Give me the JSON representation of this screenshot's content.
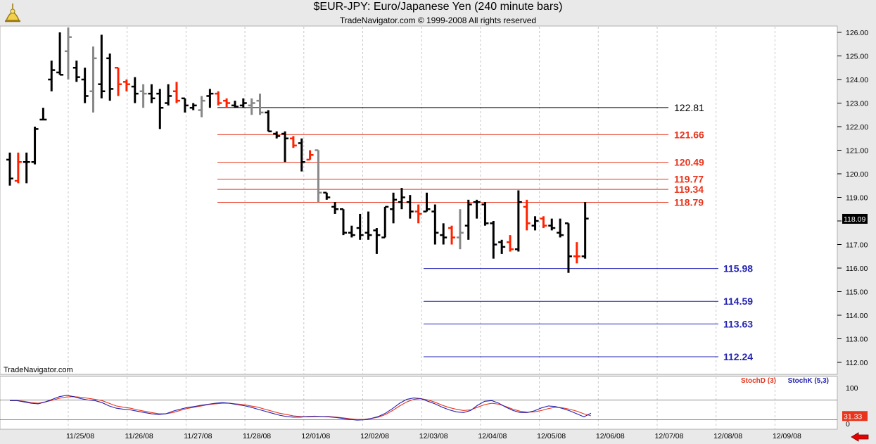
{
  "header": {
    "title": "$EUR-JPY:  Euro/Japanese Yen  (240 minute bars)",
    "subtitle": "TradeNavigator.com © 1999-2008 All rights reserved"
  },
  "watermark": "TradeNavigator.com",
  "colors": {
    "up_bar": "#000000",
    "down_bar": "#ff2200",
    "inside_bar": "#888888",
    "resistance": "#e8341c",
    "support": "#2323b4",
    "stoch_d": "#e8341c",
    "stoch_k": "#2323b4"
  },
  "chart_data": [
    {
      "type": "ohlc",
      "x_tick_labels": [
        "11/25/08",
        "11/26/08",
        "11/27/08",
        "11/28/08",
        "12/01/08",
        "12/02/08",
        "12/03/08",
        "12/04/08",
        "12/05/08",
        "12/06/08",
        "12/07/08",
        "12/08/08",
        "12/09/08"
      ],
      "ylim": [
        111.8,
        126.2
      ],
      "y_ticks": [
        112.0,
        113.0,
        114.0,
        115.0,
        116.0,
        117.0,
        118.0,
        119.0,
        120.0,
        121.0,
        122.0,
        123.0,
        124.0,
        125.0,
        126.0
      ],
      "last_price": "118.09",
      "bars": [
        {
          "o": 120.6,
          "h": 120.9,
          "l": 119.5,
          "c": 119.8,
          "k": "u"
        },
        {
          "o": 119.7,
          "h": 120.9,
          "l": 119.6,
          "c": 120.5,
          "k": "d"
        },
        {
          "o": 120.5,
          "h": 120.9,
          "l": 119.6,
          "c": 120.5,
          "k": "u"
        },
        {
          "o": 120.5,
          "h": 122.0,
          "l": 120.4,
          "c": 121.9,
          "k": "u"
        },
        {
          "o": 122.3,
          "h": 122.8,
          "l": 122.3,
          "c": 122.3,
          "k": "u"
        },
        {
          "o": 124.0,
          "h": 124.8,
          "l": 123.5,
          "c": 124.4,
          "k": "u"
        },
        {
          "o": 124.3,
          "h": 126.0,
          "l": 124.2,
          "c": 124.2,
          "k": "u"
        },
        {
          "o": 125.2,
          "h": 126.2,
          "l": 124.0,
          "c": 125.8,
          "k": "i"
        },
        {
          "o": 124.5,
          "h": 124.8,
          "l": 123.9,
          "c": 124.1,
          "k": "u"
        },
        {
          "o": 124.0,
          "h": 124.5,
          "l": 123.0,
          "c": 123.3,
          "k": "u"
        },
        {
          "o": 123.5,
          "h": 125.4,
          "l": 122.6,
          "c": 124.9,
          "k": "i"
        },
        {
          "o": 123.8,
          "h": 125.9,
          "l": 123.2,
          "c": 123.5,
          "k": "u"
        },
        {
          "o": 124.9,
          "h": 125.1,
          "l": 123.1,
          "c": 123.6,
          "k": "u"
        },
        {
          "o": 124.5,
          "h": 124.5,
          "l": 123.3,
          "c": 123.8,
          "k": "d"
        },
        {
          "o": 123.9,
          "h": 124.0,
          "l": 123.5,
          "c": 123.8,
          "k": "d"
        },
        {
          "o": 123.7,
          "h": 124.1,
          "l": 123.0,
          "c": 123.4,
          "k": "u"
        },
        {
          "o": 123.5,
          "h": 123.8,
          "l": 122.8,
          "c": 123.4,
          "k": "i"
        },
        {
          "o": 123.4,
          "h": 123.8,
          "l": 123.0,
          "c": 123.2,
          "k": "u"
        },
        {
          "o": 123.4,
          "h": 123.6,
          "l": 121.9,
          "c": 122.8,
          "k": "u"
        },
        {
          "o": 123.0,
          "h": 123.8,
          "l": 122.9,
          "c": 123.3,
          "k": "u"
        },
        {
          "o": 123.5,
          "h": 123.9,
          "l": 123.0,
          "c": 123.1,
          "k": "d"
        },
        {
          "o": 123.2,
          "h": 123.2,
          "l": 122.6,
          "c": 122.9,
          "k": "u"
        },
        {
          "o": 122.8,
          "h": 123.0,
          "l": 122.7,
          "c": 122.9,
          "k": "u"
        },
        {
          "o": 122.7,
          "h": 123.3,
          "l": 122.4,
          "c": 123.1,
          "k": "i"
        },
        {
          "o": 123.3,
          "h": 123.6,
          "l": 122.8,
          "c": 123.4,
          "k": "u"
        },
        {
          "o": 123.4,
          "h": 123.5,
          "l": 122.9,
          "c": 123.0,
          "k": "d"
        },
        {
          "o": 123.1,
          "h": 123.2,
          "l": 122.8,
          "c": 123.0,
          "k": "d"
        },
        {
          "o": 122.9,
          "h": 123.1,
          "l": 122.8,
          "c": 122.85,
          "k": "u"
        },
        {
          "o": 122.9,
          "h": 123.2,
          "l": 122.8,
          "c": 123.0,
          "k": "u"
        },
        {
          "o": 122.9,
          "h": 123.2,
          "l": 122.5,
          "c": 123.0,
          "k": "i"
        },
        {
          "o": 123.1,
          "h": 123.4,
          "l": 122.5,
          "c": 122.6,
          "k": "i"
        },
        {
          "o": 122.6,
          "h": 122.7,
          "l": 121.8,
          "c": 121.8,
          "k": "u"
        },
        {
          "o": 121.7,
          "h": 121.8,
          "l": 121.5,
          "c": 121.6,
          "k": "u"
        },
        {
          "o": 121.7,
          "h": 121.8,
          "l": 120.5,
          "c": 121.5,
          "k": "u"
        },
        {
          "o": 121.5,
          "h": 121.6,
          "l": 121.1,
          "c": 121.2,
          "k": "d"
        },
        {
          "o": 121.3,
          "h": 121.5,
          "l": 120.1,
          "c": 120.5,
          "k": "u"
        },
        {
          "o": 120.6,
          "h": 121.0,
          "l": 120.6,
          "c": 120.8,
          "k": "d"
        },
        {
          "o": 121.0,
          "h": 121.0,
          "l": 118.8,
          "c": 119.2,
          "k": "i"
        },
        {
          "o": 119.2,
          "h": 119.2,
          "l": 118.9,
          "c": 119.0,
          "k": "u"
        },
        {
          "o": 118.6,
          "h": 118.8,
          "l": 118.3,
          "c": 118.5,
          "k": "u"
        },
        {
          "o": 118.5,
          "h": 118.5,
          "l": 117.4,
          "c": 117.5,
          "k": "u"
        },
        {
          "o": 117.5,
          "h": 117.8,
          "l": 117.3,
          "c": 117.4,
          "k": "u"
        },
        {
          "o": 117.7,
          "h": 118.3,
          "l": 117.2,
          "c": 117.4,
          "k": "u"
        },
        {
          "o": 117.5,
          "h": 118.4,
          "l": 117.2,
          "c": 117.4,
          "k": "u"
        },
        {
          "o": 117.6,
          "h": 117.7,
          "l": 116.6,
          "c": 117.4,
          "k": "u"
        },
        {
          "o": 117.3,
          "h": 118.6,
          "l": 117.3,
          "c": 118.6,
          "k": "u"
        },
        {
          "o": 118.5,
          "h": 119.2,
          "l": 117.9,
          "c": 118.9,
          "k": "u"
        },
        {
          "o": 118.8,
          "h": 119.4,
          "l": 118.5,
          "c": 119.0,
          "k": "u"
        },
        {
          "o": 118.8,
          "h": 119.1,
          "l": 118.1,
          "c": 118.4,
          "k": "u"
        },
        {
          "o": 118.4,
          "h": 118.7,
          "l": 117.9,
          "c": 118.3,
          "k": "d"
        },
        {
          "o": 118.4,
          "h": 119.2,
          "l": 118.4,
          "c": 118.5,
          "k": "u"
        },
        {
          "o": 118.4,
          "h": 118.7,
          "l": 117.0,
          "c": 117.5,
          "k": "u"
        },
        {
          "o": 117.4,
          "h": 117.9,
          "l": 117.0,
          "c": 117.3,
          "k": "u"
        },
        {
          "o": 117.7,
          "h": 117.8,
          "l": 117.0,
          "c": 117.3,
          "k": "d"
        },
        {
          "o": 117.3,
          "h": 118.5,
          "l": 116.8,
          "c": 117.5,
          "k": "i"
        },
        {
          "o": 117.8,
          "h": 118.9,
          "l": 117.2,
          "c": 118.7,
          "k": "u"
        },
        {
          "o": 118.8,
          "h": 118.9,
          "l": 118.1,
          "c": 118.8,
          "k": "u"
        },
        {
          "o": 118.7,
          "h": 118.8,
          "l": 117.8,
          "c": 117.9,
          "k": "u"
        },
        {
          "o": 117.9,
          "h": 118.0,
          "l": 116.4,
          "c": 117.0,
          "k": "u"
        },
        {
          "o": 117.1,
          "h": 117.2,
          "l": 116.6,
          "c": 116.9,
          "k": "u"
        },
        {
          "o": 117.1,
          "h": 117.4,
          "l": 116.7,
          "c": 116.8,
          "k": "d"
        },
        {
          "o": 116.8,
          "h": 119.3,
          "l": 116.7,
          "c": 118.8,
          "k": "u"
        },
        {
          "o": 118.6,
          "h": 118.9,
          "l": 117.6,
          "c": 117.9,
          "k": "d"
        },
        {
          "o": 117.8,
          "h": 118.2,
          "l": 117.6,
          "c": 118.0,
          "k": "u"
        },
        {
          "o": 118.1,
          "h": 118.2,
          "l": 117.7,
          "c": 117.8,
          "k": "d"
        },
        {
          "o": 117.8,
          "h": 118.1,
          "l": 117.6,
          "c": 117.7,
          "k": "u"
        },
        {
          "o": 117.5,
          "h": 118.1,
          "l": 117.3,
          "c": 117.4,
          "k": "u"
        },
        {
          "o": 117.9,
          "h": 117.9,
          "l": 115.8,
          "c": 116.5,
          "k": "u"
        },
        {
          "o": 116.5,
          "h": 117.1,
          "l": 116.2,
          "c": 116.5,
          "k": "d"
        },
        {
          "o": 116.5,
          "h": 118.8,
          "l": 116.4,
          "c": 118.1,
          "k": "u"
        }
      ],
      "levels": [
        {
          "value": 122.81,
          "label": "122.81",
          "kind": "pivot"
        },
        {
          "value": 121.66,
          "label": "121.66",
          "kind": "resistance"
        },
        {
          "value": 120.49,
          "label": "120.49",
          "kind": "resistance"
        },
        {
          "value": 119.77,
          "label": "119.77",
          "kind": "resistance"
        },
        {
          "value": 119.34,
          "label": "119.34",
          "kind": "resistance"
        },
        {
          "value": 118.79,
          "label": "118.79",
          "kind": "resistance"
        },
        {
          "value": 115.98,
          "label": "115.98",
          "kind": "support"
        },
        {
          "value": 114.59,
          "label": "114.59",
          "kind": "support"
        },
        {
          "value": 113.63,
          "label": "113.63",
          "kind": "support"
        },
        {
          "value": 112.24,
          "label": "112.24",
          "kind": "support"
        }
      ]
    },
    {
      "type": "line",
      "ylim": [
        0,
        100
      ],
      "y_tick_labels": [
        "100",
        "0"
      ],
      "reference_lines": [
        80,
        20
      ],
      "last_value": "31.33",
      "series": [
        {
          "name": "StochD (3)",
          "values": [
            78,
            78,
            76,
            72,
            70,
            74,
            79,
            85,
            89,
            90,
            88,
            85,
            82,
            78,
            70,
            62,
            58,
            55,
            50,
            46,
            42,
            38,
            38,
            42,
            48,
            54,
            58,
            62,
            66,
            68,
            70,
            70,
            68,
            66,
            62,
            58,
            52,
            46,
            40,
            36,
            32,
            30,
            29,
            30,
            30,
            30,
            28,
            26,
            23,
            21,
            21,
            24,
            28,
            36,
            48,
            62,
            74,
            82,
            84,
            80,
            73,
            64,
            57,
            52,
            48,
            50,
            58,
            66,
            70,
            67,
            60,
            52,
            46,
            43,
            44,
            48,
            54,
            58,
            56,
            52,
            46,
            38,
            32
          ]
        },
        {
          "name": "StochK (5,3)",
          "values": [
            78,
            78,
            74,
            70,
            68,
            74,
            82,
            90,
            94,
            90,
            84,
            80,
            78,
            72,
            62,
            55,
            52,
            50,
            46,
            42,
            38,
            36,
            38,
            46,
            52,
            57,
            60,
            64,
            67,
            70,
            72,
            70,
            66,
            63,
            58,
            52,
            46,
            40,
            34,
            30,
            28,
            28,
            30,
            31,
            30,
            29,
            27,
            24,
            21,
            19,
            20,
            24,
            30,
            40,
            54,
            70,
            82,
            86,
            84,
            76,
            68,
            58,
            50,
            44,
            42,
            48,
            64,
            76,
            78,
            70,
            58,
            48,
            42,
            42,
            47,
            56,
            62,
            60,
            54,
            47,
            38,
            29,
            40
          ]
        }
      ]
    }
  ]
}
